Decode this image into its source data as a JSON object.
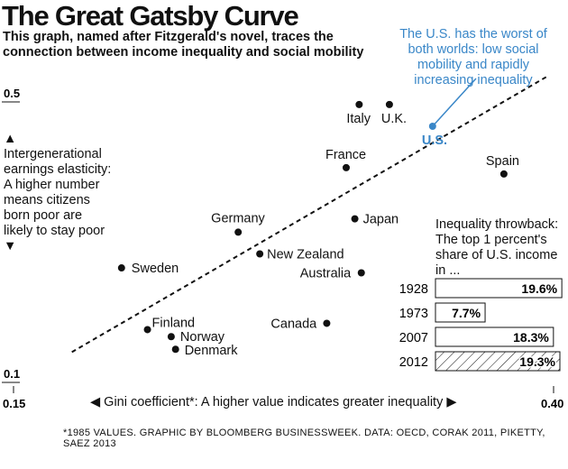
{
  "title": "The Great Gatsby Curve",
  "subtitle": "This graph, named after Fitzgerald's novel, traces the connection between income inequality and social mobility",
  "annotation": "The U.S. has the worst of both worlds: low social mobility and rapidly increasing inequality",
  "footnote": "*1985 VALUES. GRAPHIC BY BLOOMBERG BUSINESSWEEK. DATA: OECD, CORAK 2011, PIKETTY, SAEZ 2013",
  "colors": {
    "highlight": "#3a87c8",
    "ink": "#111111"
  },
  "chart_data": [
    {
      "type": "scatter",
      "xlabel": "◀ Gini coefficient*: A higher value indicates greater inequality ▶",
      "ylabel": "▲ Intergenerational earnings elasticity: A higher number means citizens born poor are likely to stay poor ▼",
      "xlim": [
        0.15,
        0.4
      ],
      "ylim": [
        0.1,
        0.5
      ],
      "xticks": [
        "0.15",
        "0.40"
      ],
      "yticks": [
        "0.1",
        "0.5"
      ],
      "grid": false,
      "points": [
        {
          "label": "Italy",
          "x": 0.31,
          "y": 0.495
        },
        {
          "label": "U.K.",
          "x": 0.324,
          "y": 0.495
        },
        {
          "label": "U.S.",
          "x": 0.344,
          "y": 0.464,
          "highlight": true
        },
        {
          "label": "France",
          "x": 0.304,
          "y": 0.405
        },
        {
          "label": "Spain",
          "x": 0.377,
          "y": 0.396
        },
        {
          "label": "Japan",
          "x": 0.308,
          "y": 0.332
        },
        {
          "label": "Germany",
          "x": 0.254,
          "y": 0.313
        },
        {
          "label": "New Zealand",
          "x": 0.264,
          "y": 0.282
        },
        {
          "label": "Sweden",
          "x": 0.2,
          "y": 0.262
        },
        {
          "label": "Australia",
          "x": 0.311,
          "y": 0.255
        },
        {
          "label": "Canada",
          "x": 0.295,
          "y": 0.183
        },
        {
          "label": "Finland",
          "x": 0.212,
          "y": 0.174
        },
        {
          "label": "Norway",
          "x": 0.223,
          "y": 0.164
        },
        {
          "label": "Denmark",
          "x": 0.225,
          "y": 0.146
        }
      ],
      "trendline": {
        "style": "dashed",
        "from": [
          0.177,
          0.142
        ],
        "to": [
          0.397,
          0.535
        ]
      }
    },
    {
      "type": "bar",
      "title": "Inequality throwback: The top 1 percent's share of U.S. income in ...",
      "categories": [
        "1928",
        "1973",
        "2007",
        "2012"
      ],
      "values": [
        19.6,
        7.7,
        18.3,
        19.3
      ],
      "labels": [
        "19.6%",
        "7.7%",
        "18.3%",
        "19.3%"
      ],
      "hatched": [
        false,
        false,
        false,
        true
      ]
    }
  ]
}
